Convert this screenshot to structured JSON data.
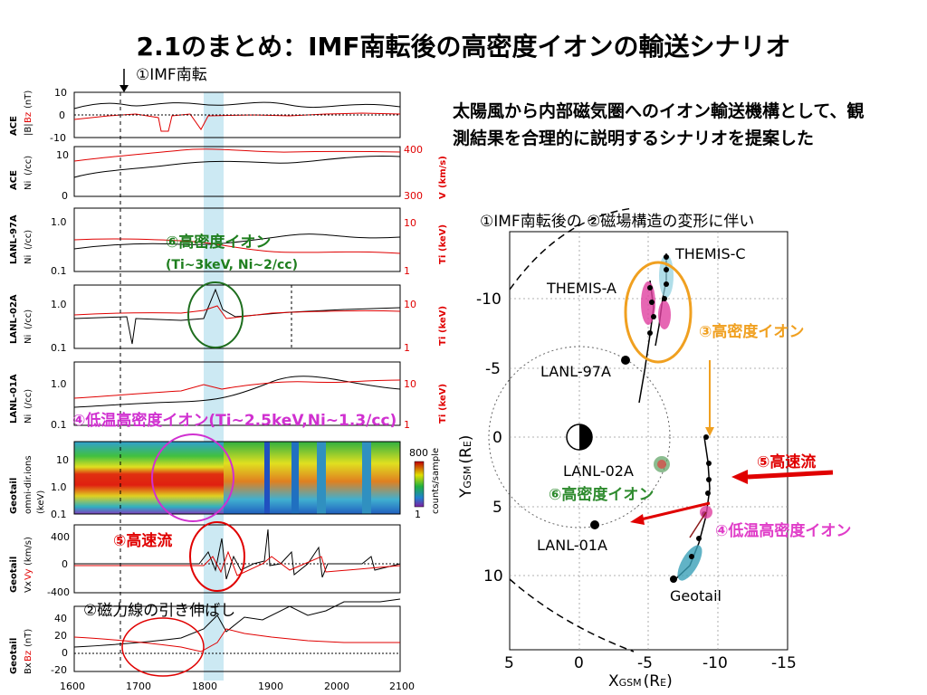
{
  "slide": {
    "title": "2.1のまとめ：IMF南転後の高密度イオンの輸送シナリオ",
    "summary": "太陽風から内部磁気圏へのイオン輸送機構として、観測結果を合理的に説明するシナリオを提案した"
  },
  "timeseries": {
    "marker_label": "①IMF南転",
    "x_ticks": [
      "1600",
      "1700",
      "1800",
      "1900",
      "2000",
      "2100"
    ],
    "panels": [
      {
        "name": "ACE",
        "ylabel_black": "|B|",
        "ylabel_red": "Bz",
        "unit": "(nT)",
        "left_ticks": [
          "10",
          "0",
          "-10"
        ]
      },
      {
        "name": "ACE",
        "ylabel_black": "Ni",
        "unit_black": "(/cc)",
        "ylabel_red": "V",
        "unit_red": "(km/s)",
        "left_ticks": [
          "10",
          "0"
        ],
        "right_ticks": [
          "400",
          "300"
        ]
      },
      {
        "name": "LANL-97A",
        "ylabel_black": "Ni",
        "unit_black": "(/cc)",
        "ylabel_red": "Ti",
        "unit_red": "(keV)",
        "left_ticks": [
          "1.0",
          "0.1"
        ],
        "right_ticks": [
          "10",
          "1"
        ]
      },
      {
        "name": "LANL-02A",
        "ylabel_black": "Ni",
        "unit_black": "(/cc)",
        "ylabel_red": "Ti",
        "unit_red": "(keV)",
        "left_ticks": [
          "1.0",
          "0.1"
        ],
        "right_ticks": [
          "10",
          "1"
        ]
      },
      {
        "name": "LANL-01A",
        "ylabel_black": "Ni",
        "unit_black": "(/cc)",
        "ylabel_red": "Ti",
        "unit_red": "(keV)",
        "left_ticks": [
          "1.0",
          "0.1"
        ],
        "right_ticks": [
          "10",
          "1"
        ]
      },
      {
        "name": "Geotail",
        "ylabel": "omni-dir.ions",
        "unit": "(keV)",
        "left_ticks": [
          "10",
          "1.0",
          "0.1"
        ],
        "colorbar_ticks": [
          "800",
          "1"
        ],
        "colorbar_label": "counts/sample"
      },
      {
        "name": "Geotail",
        "ylabel_black": "Vx",
        "ylabel_red": "Vy",
        "unit": "(km/s)",
        "left_ticks": [
          "400",
          "0",
          "-400"
        ]
      },
      {
        "name": "Geotail",
        "ylabel_black": "Bx",
        "ylabel_red": "Bz",
        "unit": "(nT)",
        "left_ticks": [
          "40",
          "20",
          "0",
          "-20"
        ]
      }
    ],
    "annotations": {
      "high_density": "⑥高密度イオン",
      "high_density_params": "(Ti~3keV, Ni~2/cc)",
      "cold_dense": "④低温高密度イオン(Ti~2.5keV,Ni~1.3/cc)",
      "fast_flow": "⑤高速流",
      "stretch": "②磁力線の引き伸ばし"
    }
  },
  "map": {
    "heading": "①IMF南転後の ②磁場構造の変形に伴い",
    "x_ticks": [
      "5",
      "0",
      "-5",
      "-10",
      "-15"
    ],
    "y_ticks": [
      "-10",
      "-5",
      "0",
      "5",
      "10"
    ],
    "x_label": "X",
    "x_label_sub": "GSM",
    "x_label_unit": "(R",
    "x_label_unit_sub": "E",
    "x_label_close": ")",
    "y_label": "Y",
    "y_label_sub": "GSM",
    "y_label_unit": "(R",
    "y_label_unit_sub": "E",
    "y_label_close": ")",
    "labels": {
      "themis_c": "THEMIS-C",
      "themis_a": "THEMIS-A",
      "lanl97a": "LANL-97A",
      "lanl02a": "LANL-02A",
      "lanl01a": "LANL-01A",
      "geotail": "Geotail",
      "dense3": "③高密度イオン",
      "fast5": "⑤高速流",
      "dense6": "⑥高密度イオン",
      "cold4": "④低温高密度イオン"
    },
    "colors": {
      "orange": "#f0a020",
      "red": "#e00000",
      "green": "#2e8b2e",
      "magenta": "#e03cc8",
      "pink": "#e0409a",
      "teal": "#3aa0b8"
    }
  }
}
